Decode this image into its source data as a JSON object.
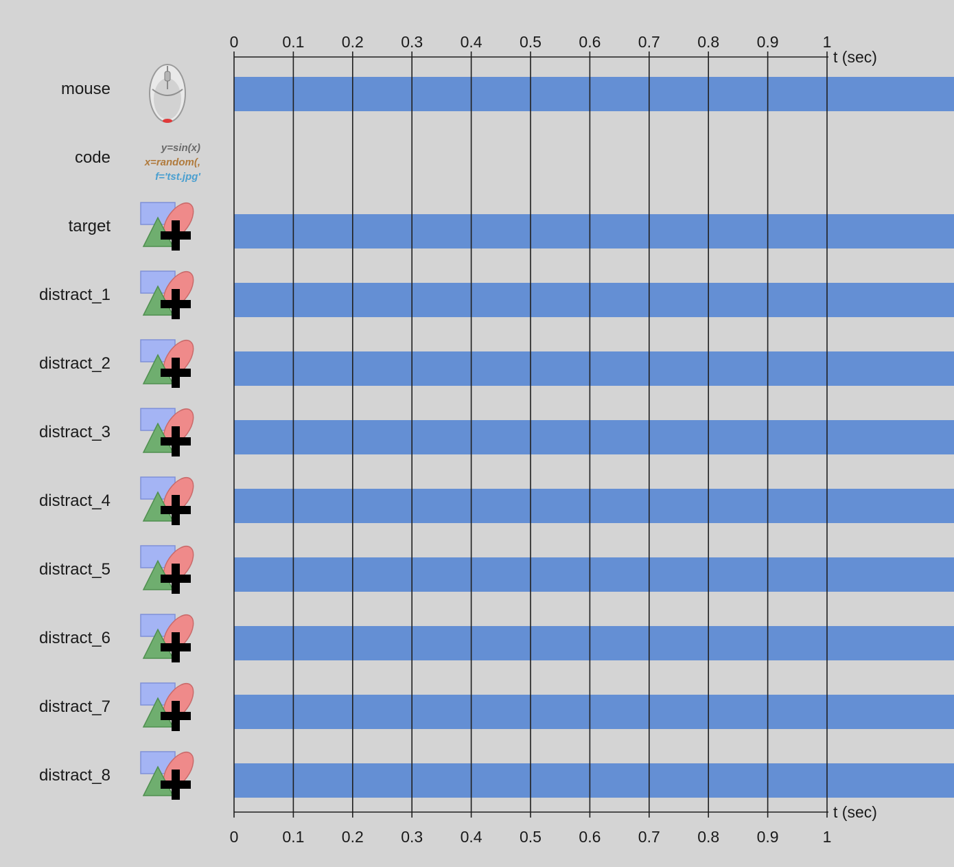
{
  "timeline": {
    "axis_unit_label": "t (sec)",
    "ticks": [
      "0",
      "0.1",
      "0.2",
      "0.3",
      "0.4",
      "0.5",
      "0.6",
      "0.7",
      "0.8",
      "0.9",
      "1"
    ],
    "tick_values": [
      0,
      0.1,
      0.2,
      0.3,
      0.4,
      0.5,
      0.6,
      0.7,
      0.8,
      0.9,
      1
    ],
    "bar_color": "#648fd4",
    "grid_color": "#000000",
    "background_color": "#d4d4d4",
    "components": [
      {
        "name": "mouse",
        "icon": "mouse-icon",
        "has_bar": true
      },
      {
        "name": "code",
        "icon": "code-icon",
        "has_bar": false
      },
      {
        "name": "target",
        "icon": "polygon-stim-icon",
        "has_bar": true
      },
      {
        "name": "distract_1",
        "icon": "polygon-stim-icon",
        "has_bar": true
      },
      {
        "name": "distract_2",
        "icon": "polygon-stim-icon",
        "has_bar": true
      },
      {
        "name": "distract_3",
        "icon": "polygon-stim-icon",
        "has_bar": true
      },
      {
        "name": "distract_4",
        "icon": "polygon-stim-icon",
        "has_bar": true
      },
      {
        "name": "distract_5",
        "icon": "polygon-stim-icon",
        "has_bar": true
      },
      {
        "name": "distract_6",
        "icon": "polygon-stim-icon",
        "has_bar": true
      },
      {
        "name": "distract_7",
        "icon": "polygon-stim-icon",
        "has_bar": true
      },
      {
        "name": "distract_8",
        "icon": "polygon-stim-icon",
        "has_bar": true
      }
    ],
    "code_icon_lines": [
      {
        "text": "y=sin(x)",
        "color": "#6a6a6a"
      },
      {
        "text": "x=random(,",
        "color": "#b07a3c"
      },
      {
        "text": "f='tst.jpg'",
        "color": "#4a9fd0"
      }
    ]
  }
}
